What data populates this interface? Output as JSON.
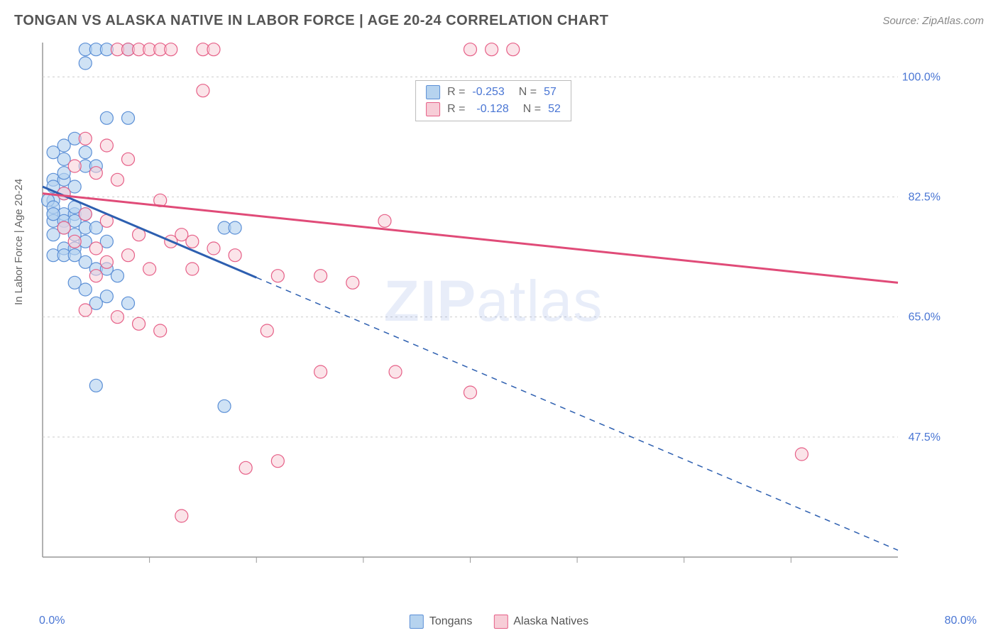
{
  "header": {
    "title": "TONGAN VS ALASKA NATIVE IN LABOR FORCE | AGE 20-24 CORRELATION CHART",
    "source": "Source: ZipAtlas.com"
  },
  "chart": {
    "type": "scatter",
    "ylabel": "In Labor Force | Age 20-24",
    "background_color": "#ffffff",
    "grid_color": "#cccccc",
    "axis_color": "#888888",
    "plot_border_color": "#999999",
    "xlim": [
      0,
      80
    ],
    "ylim": [
      30,
      105
    ],
    "x_label_min": "0.0%",
    "x_label_max": "80.0%",
    "x_ticks": [
      10,
      20,
      30,
      40,
      50,
      60,
      70
    ],
    "y_ticks": [
      {
        "v": 47.5,
        "label": "47.5%"
      },
      {
        "v": 65.0,
        "label": "65.0%"
      },
      {
        "v": 82.5,
        "label": "82.5%"
      },
      {
        "v": 100.0,
        "label": "100.0%"
      }
    ],
    "axis_label_color": "#4a76d4",
    "axis_label_fontsize": 16,
    "series": [
      {
        "name": "Tongans",
        "marker_fill": "#b6d3ef",
        "marker_stroke": "#5b8fd6",
        "marker_opacity": 0.65,
        "marker_radius": 9,
        "line_color": "#2d5fb0",
        "line_width": 3,
        "solid_x_max": 20,
        "R": "-0.253",
        "N": "57",
        "trend": {
          "x1": 0,
          "y1": 84,
          "x2": 80,
          "y2": 31
        },
        "points": [
          [
            4,
            104
          ],
          [
            5,
            104
          ],
          [
            6,
            104
          ],
          [
            8,
            104
          ],
          [
            4,
            102
          ],
          [
            6,
            94
          ],
          [
            8,
            94
          ],
          [
            3,
            91
          ],
          [
            2,
            90
          ],
          [
            1,
            89
          ],
          [
            4,
            89
          ],
          [
            2,
            88
          ],
          [
            4,
            87
          ],
          [
            5,
            87
          ],
          [
            1,
            85
          ],
          [
            2,
            85
          ],
          [
            3,
            84
          ],
          [
            1,
            84
          ],
          [
            2,
            83
          ],
          [
            1,
            82
          ],
          [
            0.5,
            82
          ],
          [
            1,
            80
          ],
          [
            2,
            80
          ],
          [
            3,
            80
          ],
          [
            4,
            80
          ],
          [
            1,
            79
          ],
          [
            2,
            79
          ],
          [
            3,
            79
          ],
          [
            4,
            78
          ],
          [
            5,
            78
          ],
          [
            1,
            77
          ],
          [
            3,
            77
          ],
          [
            4,
            76
          ],
          [
            6,
            76
          ],
          [
            17,
            78
          ],
          [
            18,
            78
          ],
          [
            2,
            75
          ],
          [
            3,
            75
          ],
          [
            1,
            74
          ],
          [
            2,
            74
          ],
          [
            3,
            74
          ],
          [
            4,
            73
          ],
          [
            5,
            72
          ],
          [
            6,
            72
          ],
          [
            7,
            71
          ],
          [
            3,
            70
          ],
          [
            4,
            69
          ],
          [
            6,
            68
          ],
          [
            5,
            67
          ],
          [
            8,
            67
          ],
          [
            5,
            55
          ],
          [
            17,
            52
          ],
          [
            1,
            81
          ],
          [
            1,
            80
          ],
          [
            2,
            86
          ],
          [
            3,
            81
          ],
          [
            2,
            78
          ]
        ]
      },
      {
        "name": "Alaska Natives",
        "marker_fill": "#f7cdd7",
        "marker_stroke": "#e65f87",
        "marker_opacity": 0.55,
        "marker_radius": 9,
        "line_color": "#e04b78",
        "line_width": 3,
        "solid_x_max": 80,
        "R": "-0.128",
        "N": "52",
        "trend": {
          "x1": 0,
          "y1": 83,
          "x2": 80,
          "y2": 70
        },
        "points": [
          [
            7,
            104
          ],
          [
            8,
            104
          ],
          [
            9,
            104
          ],
          [
            10,
            104
          ],
          [
            11,
            104
          ],
          [
            12,
            104
          ],
          [
            15,
            104
          ],
          [
            16,
            104
          ],
          [
            40,
            104
          ],
          [
            42,
            104
          ],
          [
            44,
            104
          ],
          [
            15,
            98
          ],
          [
            4,
            91
          ],
          [
            6,
            90
          ],
          [
            8,
            88
          ],
          [
            3,
            87
          ],
          [
            5,
            86
          ],
          [
            7,
            85
          ],
          [
            2,
            83
          ],
          [
            11,
            82
          ],
          [
            4,
            80
          ],
          [
            6,
            79
          ],
          [
            9,
            77
          ],
          [
            12,
            76
          ],
          [
            5,
            75
          ],
          [
            8,
            74
          ],
          [
            14,
            76
          ],
          [
            32,
            79
          ],
          [
            6,
            73
          ],
          [
            10,
            72
          ],
          [
            13,
            77
          ],
          [
            16,
            75
          ],
          [
            18,
            74
          ],
          [
            14,
            72
          ],
          [
            22,
            71
          ],
          [
            26,
            71
          ],
          [
            29,
            70
          ],
          [
            4,
            66
          ],
          [
            7,
            65
          ],
          [
            9,
            64
          ],
          [
            11,
            63
          ],
          [
            21,
            63
          ],
          [
            26,
            57
          ],
          [
            33,
            57
          ],
          [
            40,
            54
          ],
          [
            22,
            44
          ],
          [
            19,
            43
          ],
          [
            13,
            36
          ],
          [
            71,
            45
          ],
          [
            2,
            78
          ],
          [
            3,
            76
          ],
          [
            5,
            71
          ]
        ]
      }
    ],
    "bottom_legend": [
      {
        "label": "Tongans",
        "fill": "#b6d3ef",
        "stroke": "#5b8fd6"
      },
      {
        "label": "Alaska Natives",
        "fill": "#f7cdd7",
        "stroke": "#e65f87"
      }
    ],
    "watermark": {
      "bold": "ZIP",
      "rest": "atlas"
    }
  }
}
